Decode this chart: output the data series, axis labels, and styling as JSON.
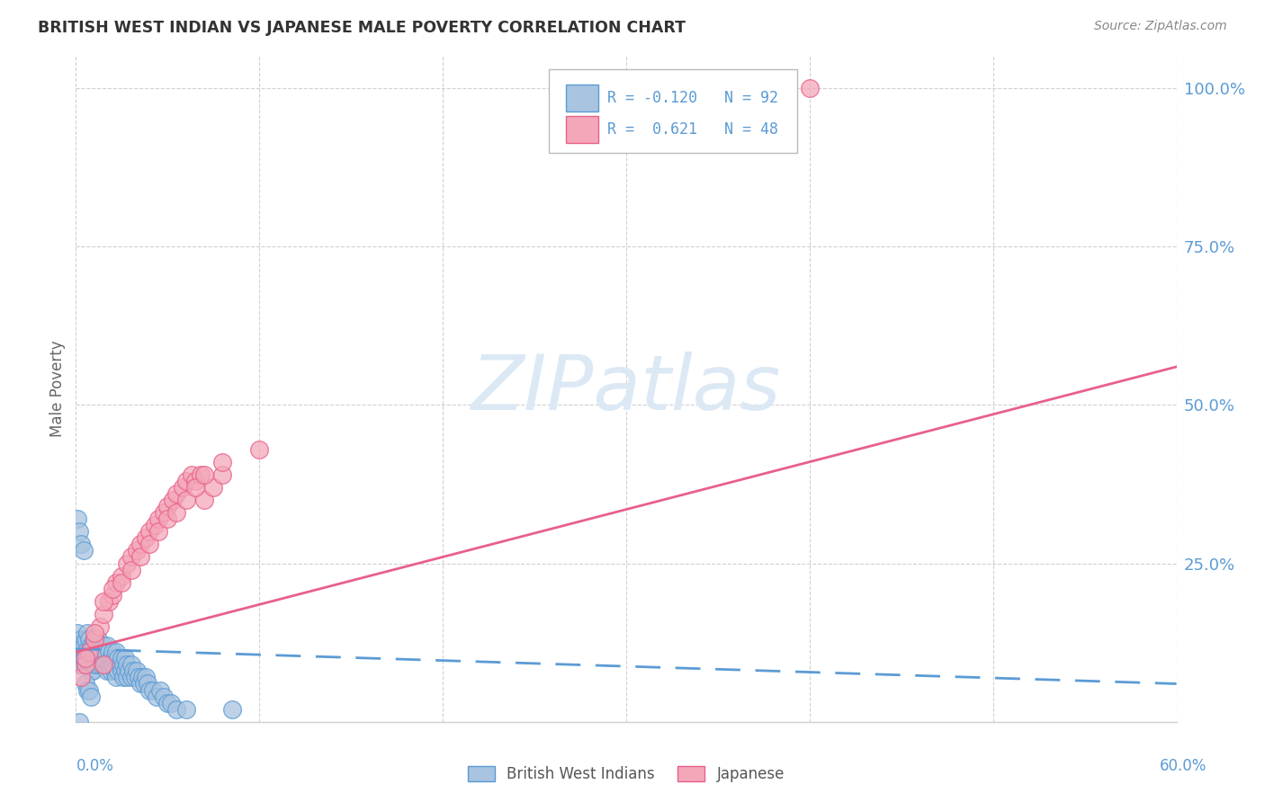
{
  "title": "BRITISH WEST INDIAN VS JAPANESE MALE POVERTY CORRELATION CHART",
  "source": "Source: ZipAtlas.com",
  "ylabel": "Male Poverty",
  "xmin": 0.0,
  "xmax": 0.6,
  "ymin": 0.0,
  "ymax": 1.05,
  "bwi_color": "#a8c4e0",
  "bwi_edge_color": "#5b9bd5",
  "jap_color": "#f4a7b9",
  "jap_edge_color": "#e8608a",
  "bwi_trend_color": "#5b9bd5",
  "jap_trend_color": "#e8608a",
  "legend_bwi_label": "British West Indians",
  "legend_jap_label": "Japanese",
  "bwi_r_text": "R = -0.120   N = 92",
  "jap_r_text": "R =  0.621   N = 48",
  "bwi_x": [
    0.001,
    0.002,
    0.002,
    0.002,
    0.003,
    0.003,
    0.003,
    0.004,
    0.004,
    0.005,
    0.005,
    0.005,
    0.006,
    0.006,
    0.007,
    0.007,
    0.007,
    0.008,
    0.008,
    0.008,
    0.009,
    0.009,
    0.009,
    0.01,
    0.01,
    0.01,
    0.011,
    0.011,
    0.012,
    0.012,
    0.013,
    0.013,
    0.014,
    0.014,
    0.015,
    0.015,
    0.016,
    0.016,
    0.017,
    0.017,
    0.018,
    0.018,
    0.019,
    0.019,
    0.02,
    0.02,
    0.021,
    0.021,
    0.022,
    0.022,
    0.023,
    0.023,
    0.024,
    0.025,
    0.025,
    0.026,
    0.026,
    0.027,
    0.027,
    0.028,
    0.028,
    0.029,
    0.03,
    0.03,
    0.031,
    0.032,
    0.033,
    0.034,
    0.035,
    0.036,
    0.037,
    0.038,
    0.039,
    0.04,
    0.042,
    0.044,
    0.046,
    0.048,
    0.05,
    0.052,
    0.001,
    0.002,
    0.003,
    0.004,
    0.005,
    0.006,
    0.007,
    0.008,
    0.055,
    0.06,
    0.085,
    0.002
  ],
  "bwi_y": [
    0.14,
    0.12,
    0.1,
    0.09,
    0.13,
    0.11,
    0.09,
    0.12,
    0.1,
    0.13,
    0.11,
    0.09,
    0.14,
    0.1,
    0.13,
    0.11,
    0.09,
    0.12,
    0.1,
    0.08,
    0.12,
    0.1,
    0.08,
    0.13,
    0.11,
    0.09,
    0.12,
    0.1,
    0.13,
    0.09,
    0.12,
    0.1,
    0.11,
    0.09,
    0.12,
    0.1,
    0.11,
    0.09,
    0.12,
    0.08,
    0.11,
    0.09,
    0.1,
    0.08,
    0.11,
    0.09,
    0.1,
    0.08,
    0.11,
    0.07,
    0.1,
    0.08,
    0.09,
    0.1,
    0.08,
    0.09,
    0.07,
    0.1,
    0.08,
    0.09,
    0.07,
    0.08,
    0.09,
    0.07,
    0.08,
    0.07,
    0.08,
    0.07,
    0.06,
    0.07,
    0.06,
    0.07,
    0.06,
    0.05,
    0.05,
    0.04,
    0.05,
    0.04,
    0.03,
    0.03,
    0.32,
    0.3,
    0.28,
    0.27,
    0.06,
    0.05,
    0.05,
    0.04,
    0.02,
    0.02,
    0.02,
    0.0
  ],
  "jap_x": [
    0.003,
    0.005,
    0.007,
    0.01,
    0.013,
    0.015,
    0.018,
    0.02,
    0.022,
    0.025,
    0.028,
    0.03,
    0.033,
    0.035,
    0.038,
    0.04,
    0.043,
    0.045,
    0.048,
    0.05,
    0.053,
    0.055,
    0.058,
    0.06,
    0.063,
    0.065,
    0.068,
    0.07,
    0.075,
    0.08,
    0.005,
    0.01,
    0.015,
    0.02,
    0.025,
    0.03,
    0.035,
    0.04,
    0.045,
    0.05,
    0.055,
    0.06,
    0.065,
    0.07,
    0.08,
    0.1,
    0.4,
    0.015
  ],
  "jap_y": [
    0.07,
    0.09,
    0.11,
    0.13,
    0.15,
    0.17,
    0.19,
    0.2,
    0.22,
    0.23,
    0.25,
    0.26,
    0.27,
    0.28,
    0.29,
    0.3,
    0.31,
    0.32,
    0.33,
    0.34,
    0.35,
    0.36,
    0.37,
    0.38,
    0.39,
    0.38,
    0.39,
    0.35,
    0.37,
    0.39,
    0.1,
    0.14,
    0.19,
    0.21,
    0.22,
    0.24,
    0.26,
    0.28,
    0.3,
    0.32,
    0.33,
    0.35,
    0.37,
    0.39,
    0.41,
    0.43,
    1.0,
    0.09
  ],
  "bwi_trend_x": [
    0.0,
    0.6
  ],
  "bwi_trend_y": [
    0.115,
    0.06
  ],
  "jap_trend_x": [
    0.0,
    0.6
  ],
  "jap_trend_y": [
    0.11,
    0.56
  ],
  "ytick_positions": [
    0.0,
    0.25,
    0.5,
    0.75,
    1.0
  ],
  "ytick_labels_right": [
    "",
    "25.0%",
    "50.0%",
    "75.0%",
    "100.0%"
  ],
  "xtick_positions": [
    0.0,
    0.1,
    0.2,
    0.3,
    0.4,
    0.5,
    0.6
  ],
  "grid_color": "#d0d0d0",
  "watermark_color": "#dce9f5",
  "tick_label_color": "#5b9bd5",
  "title_color": "#333333",
  "source_color": "#888888",
  "ylabel_color": "#666666"
}
